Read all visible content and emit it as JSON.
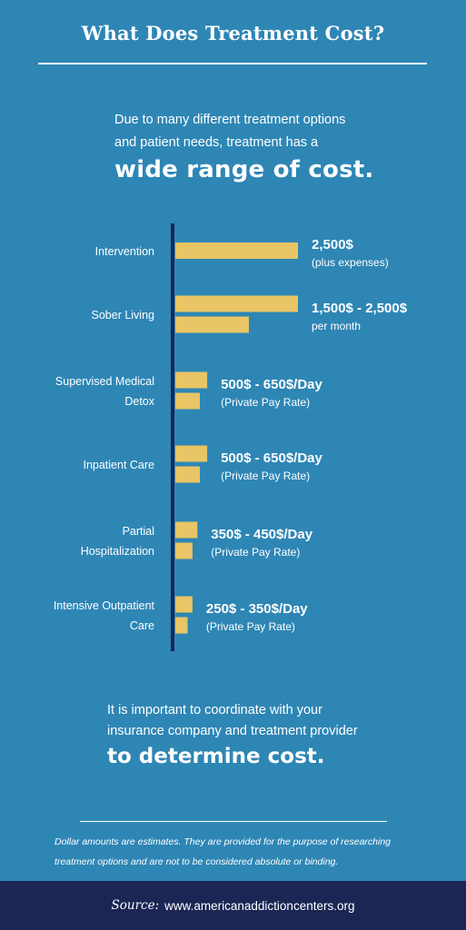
{
  "title": "What Does Treatment Cost?",
  "intro": {
    "line1": "Due to many different treatment options",
    "line2": "and patient needs, treatment has a",
    "emphasis": "wide range of cost."
  },
  "chart_data": {
    "type": "bar",
    "orientation": "horizontal",
    "categories": [
      {
        "label_lines": [
          "Intervention"
        ],
        "value_text": "2,500$",
        "note": "(plus expenses)",
        "bars": [
          2500
        ]
      },
      {
        "label_lines": [
          "Sober Living"
        ],
        "value_text": "1,500$ - 2,500$",
        "note": "per month",
        "bars": [
          2500,
          1500
        ]
      },
      {
        "label_lines": [
          "Supervised Medical",
          "Detox"
        ],
        "value_text": "500$ - 650$/Day",
        "note": "(Private Pay Rate)",
        "bars": [
          650,
          500
        ]
      },
      {
        "label_lines": [
          "Inpatient Care"
        ],
        "value_text": "500$ - 650$/Day",
        "note": "(Private Pay Rate)",
        "bars": [
          650,
          500
        ]
      },
      {
        "label_lines": [
          "Partial",
          "Hospitalization"
        ],
        "value_text": "350$ - 450$/Day",
        "note": "(Private Pay Rate)",
        "bars": [
          450,
          350
        ]
      },
      {
        "label_lines": [
          "Intensive Outpatient",
          "Care"
        ],
        "value_text": "250$ - 350$/Day",
        "note": "(Private Pay Rate)",
        "bars": [
          350,
          250
        ]
      }
    ],
    "bar_color": "#e8c565",
    "axis_color": "#1b2655",
    "grid": false
  },
  "outro": {
    "line1": "It is important to coordinate with your",
    "line2": "insurance company and treatment provider",
    "emphasis": "to determine cost."
  },
  "disclaimer": {
    "line1": "Dollar amounts are estimates. They are provided for the purpose of researching",
    "line2": "treatment options and are not to be considered absolute or binding."
  },
  "source": {
    "label": "Source:",
    "url": "www.americanaddictioncenters.org"
  }
}
